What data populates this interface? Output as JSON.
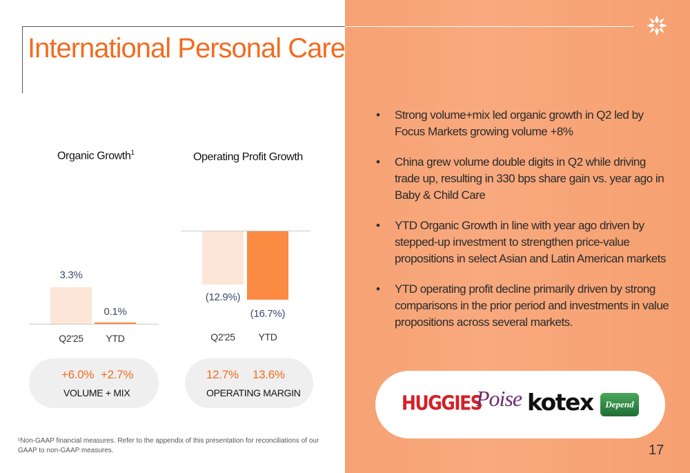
{
  "title": "International Personal Care",
  "charts": {
    "organic": {
      "heading": "Organic Growth",
      "heading_sup": "1",
      "bar_labels": [
        "3.3%",
        "0.1%"
      ],
      "categories": [
        "Q2'25",
        "YTD"
      ],
      "pill_values": [
        "+6.0%",
        "+2.7%"
      ],
      "pill_caption": "VOLUME + MIX"
    },
    "profit": {
      "heading": "Operating Profit Growth",
      "bar_labels": [
        "(12.9%)",
        "(16.7%)"
      ],
      "categories": [
        "Q2'25",
        "YTD"
      ],
      "pill_values": [
        "12.7%",
        "13.6%"
      ],
      "pill_caption": "OPERATING MARGIN"
    }
  },
  "chart_data": [
    {
      "type": "bar",
      "title": "Organic Growth",
      "categories": [
        "Q2'25",
        "YTD"
      ],
      "values": [
        3.3,
        0.1
      ],
      "unit": "%"
    },
    {
      "type": "bar",
      "title": "Operating Profit Growth",
      "categories": [
        "Q2'25",
        "YTD"
      ],
      "values": [
        -12.9,
        -16.7
      ],
      "unit": "%"
    }
  ],
  "bullet_glyph": "•",
  "bullets": [
    "Strong volume+mix led organic growth in Q2 led by Focus Markets growing volume +8%",
    "China grew volume double digits in Q2 while driving trade up, resulting in 330 bps share gain vs. year ago in Baby & Child Care",
    "YTD Organic Growth in line with year ago driven by stepped-up investment to strengthen price-value propositions in select Asian and Latin American markets",
    "YTD operating profit decline primarily driven by strong comparisons in the prior period and investments in value propositions across several markets."
  ],
  "brands": {
    "huggies": "HUGGIES",
    "poise": "Poise",
    "kotex": "kotex",
    "depend": "Depend"
  },
  "footnote": "¹Non-GAAP financial measures. Refer to the appendix of this presentation for reconciliations of our GAAP to non-GAAP measures.",
  "page_number": "17",
  "colors": {
    "accent": "#f26b21",
    "bar_light": "#fde6d7",
    "bar_dark": "#fb8a43",
    "panel": "#f8a97e",
    "value_text": "#3b4a6b"
  },
  "icons": {
    "logo": "kimberly-clark-logo-icon"
  }
}
